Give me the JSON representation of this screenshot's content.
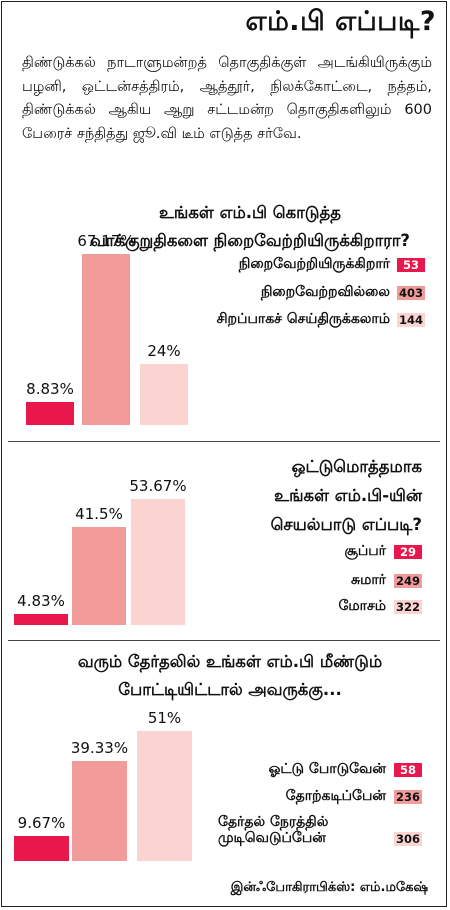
{
  "header": {
    "title": "எம்.பி எப்படி?",
    "intro": "திண்டுக்கல் நாடாளுமன்றத் தொகுதிக்குள் அடங்கியிருக்கும் பழனி, ஒட்டன்சத்திரம், ஆத்தூர், நிலக்கோட்டை, நத்தம், திண்டுக்கல் ஆகிய ஆறு சட்டமன்ற தொகுதிகளிலும் 600 பேரைச் சந்தித்து ஜூ.வி டீம் எடுத்த சர்வே."
  },
  "colors": {
    "dark": "#e8184c",
    "mid": "#f29b9b",
    "light": "#fbd3d1"
  },
  "chart_data": [
    {
      "type": "bar",
      "title_lines": [
        "உங்கள் எம்.பி கொடுத்த",
        "வாக்குறுதிகளை நிறைவேற்றியிருக்கிறாரா?"
      ],
      "categories": [
        "நிறைவேற்றியிருக்கிறார்",
        "நிறைவேற்றவில்லை",
        "சிறப்பாகச் செய்திருக்கலாம்"
      ],
      "values": [
        8.83,
        67.17,
        24
      ],
      "labels": [
        "8.83%",
        "67.17%",
        "24%"
      ],
      "counts": [
        "53",
        "403",
        "144"
      ]
    },
    {
      "type": "bar",
      "title_lines": [
        "ஒட்டுமொத்தமாக",
        "உங்கள் எம்.பி-யின்",
        "செயல்பாடு எப்படி?"
      ],
      "categories": [
        "சூப்பர்",
        "சுமார்",
        "மோசம்"
      ],
      "values": [
        4.83,
        41.5,
        53.67
      ],
      "labels": [
        "4.83%",
        "41.5%",
        "53.67%"
      ],
      "counts": [
        "29",
        "249",
        "322"
      ]
    },
    {
      "type": "bar",
      "title_lines": [
        "வரும் தேர்தலில் உங்கள் எம்.பி மீண்டும்",
        "போட்டியிட்டால் அவருக்கு..."
      ],
      "categories": [
        "ஓட்டு போடுவேன்",
        "தோற்கடிப்பேன்",
        "தேர்தல் நேரத்தில்\nமுடிவெடுப்பேன்"
      ],
      "values": [
        9.67,
        39.33,
        51
      ],
      "labels": [
        "9.67%",
        "39.33%",
        "51%"
      ],
      "counts": [
        "58",
        "236",
        "306"
      ]
    }
  ],
  "footer": {
    "credit": "இன்ஃபோகிராபிக்ஸ்: எம்.மகேஷ்"
  }
}
